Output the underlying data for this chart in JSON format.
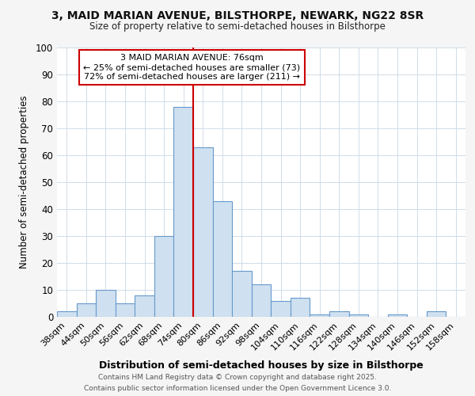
{
  "title_line1": "3, MAID MARIAN AVENUE, BILSTHORPE, NEWARK, NG22 8SR",
  "title_line2": "Size of property relative to semi-detached houses in Bilsthorpe",
  "xlabel": "Distribution of semi-detached houses by size in Bilsthorpe",
  "ylabel": "Number of semi-detached properties",
  "bin_edges": [
    35,
    41,
    47,
    53,
    59,
    65,
    71,
    77,
    83,
    89,
    95,
    101,
    107,
    113,
    119,
    125,
    131,
    137,
    143,
    149,
    155,
    161
  ],
  "bin_labels": [
    "38sqm",
    "44sqm",
    "50sqm",
    "56sqm",
    "62sqm",
    "68sqm",
    "74sqm",
    "80sqm",
    "86sqm",
    "92sqm",
    "98sqm",
    "104sqm",
    "110sqm",
    "116sqm",
    "122sqm",
    "128sqm",
    "134sqm",
    "140sqm",
    "146sqm",
    "152sqm",
    "158sqm"
  ],
  "counts": [
    2,
    5,
    10,
    5,
    8,
    30,
    78,
    63,
    43,
    17,
    12,
    6,
    7,
    1,
    2,
    1,
    0,
    1,
    0,
    2,
    0
  ],
  "bar_color": "#cfe0f0",
  "bar_edge_color": "#6699cc",
  "property_line_x": 77,
  "property_line_color": "#cc0000",
  "annotation_box_color": "#cc0000",
  "annotation_text": "3 MAID MARIAN AVENUE: 76sqm\n← 25% of semi-detached houses are smaller (73)\n72% of semi-detached houses are larger (211) →",
  "footer_text1": "Contains HM Land Registry data © Crown copyright and database right 2025.",
  "footer_text2": "Contains public sector information licensed under the Open Government Licence 3.0.",
  "ylim": [
    0,
    100
  ],
  "yticks": [
    0,
    10,
    20,
    30,
    40,
    50,
    60,
    70,
    80,
    90,
    100
  ],
  "background_color": "#f5f5f5",
  "plot_background": "#ffffff"
}
